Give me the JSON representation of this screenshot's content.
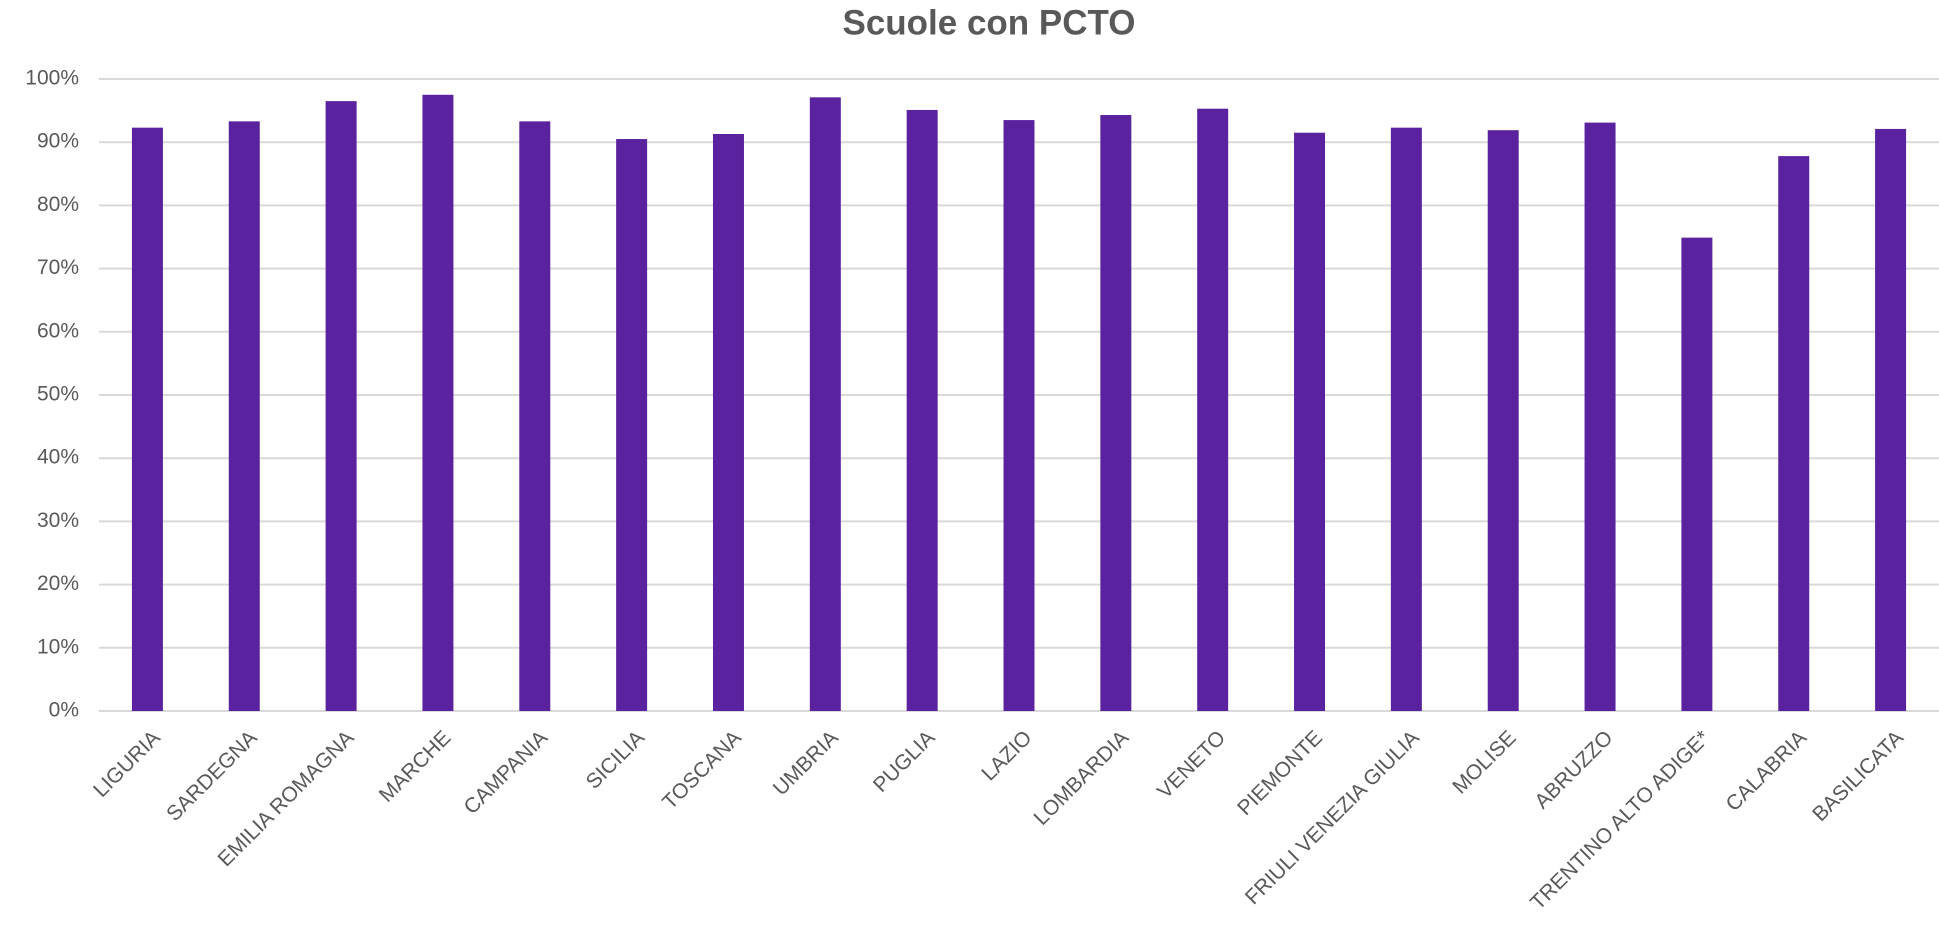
{
  "chart_data": {
    "type": "bar",
    "title": "Scuole con PCTO",
    "categories": [
      "LIGURIA",
      "SARDEGNA",
      "EMILIA ROMAGNA",
      "MARCHE",
      "CAMPANIA",
      "SICILIA",
      "TOSCANA",
      "UMBRIA",
      "PUGLIA",
      "LAZIO",
      "LOMBARDIA",
      "VENETO",
      "PIEMONTE",
      "FRIULI VENEZIA GIULIA",
      "MOLISE",
      "ABRUZZO",
      "TRENTINO ALTO  ADIGE*",
      "CALABRIA",
      "BASILICATA"
    ],
    "values": [
      92.3,
      93.3,
      96.5,
      97.5,
      93.3,
      90.5,
      91.3,
      97.1,
      95.1,
      93.5,
      94.3,
      95.3,
      91.5,
      92.3,
      91.9,
      93.1,
      74.9,
      87.8,
      92.1
    ],
    "color": "#5b229f",
    "ylim": [
      0,
      100
    ],
    "yticks": [
      {
        "value": 0,
        "label": "0%"
      },
      {
        "value": 10,
        "label": "10%"
      },
      {
        "value": 20,
        "label": "20%"
      },
      {
        "value": 30,
        "label": "30%"
      },
      {
        "value": 40,
        "label": "40%"
      },
      {
        "value": 50,
        "label": "50%"
      },
      {
        "value": 60,
        "label": "60%"
      },
      {
        "value": 70,
        "label": "70%"
      },
      {
        "value": 80,
        "label": "80%"
      },
      {
        "value": 90,
        "label": "90%"
      },
      {
        "value": 100,
        "label": "100%"
      }
    ],
    "grid": true
  }
}
